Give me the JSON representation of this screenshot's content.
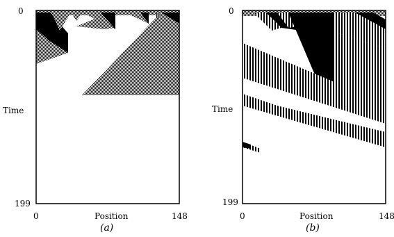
{
  "figure": {
    "panels": [
      {
        "caption": "(a)",
        "ylabel": "Time",
        "xlabel": "Position",
        "y_ticks": [
          "0",
          "199"
        ],
        "x_ticks": [
          "0",
          "148"
        ]
      },
      {
        "caption": "(b)",
        "ylabel": "Time",
        "xlabel": "Position",
        "y_ticks": [
          "0",
          "199"
        ],
        "x_ticks": [
          "0",
          "148"
        ]
      }
    ]
  },
  "colors": {
    "ink": "#000000",
    "paper": "#ffffff"
  }
}
